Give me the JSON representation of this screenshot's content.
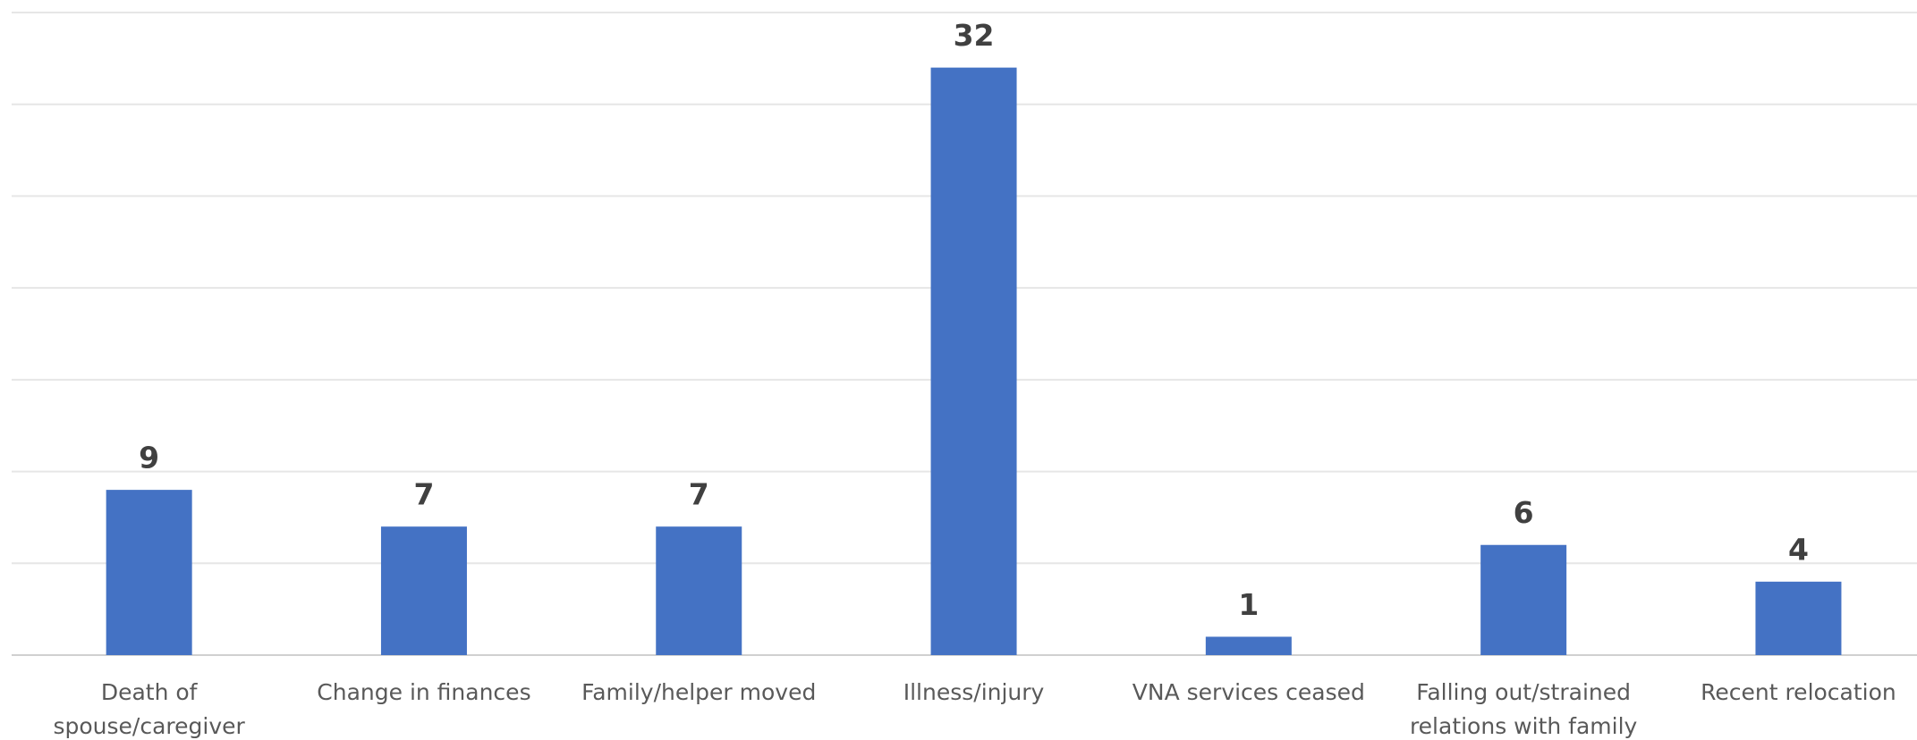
{
  "chart_data": {
    "type": "bar",
    "categories": [
      "Death of spouse/caregiver",
      "Change in finances",
      "Family/helper moved",
      "Illness/injury",
      "VNA services ceased",
      "Falling out/strained relations with family",
      "Recent relocation"
    ],
    "values": [
      9,
      7,
      7,
      32,
      1,
      6,
      4
    ],
    "color": "#4472c4",
    "ylim": [
      0,
      35
    ],
    "yticks": [
      0,
      5,
      10,
      15,
      20,
      25,
      30,
      35
    ],
    "grid": true
  }
}
